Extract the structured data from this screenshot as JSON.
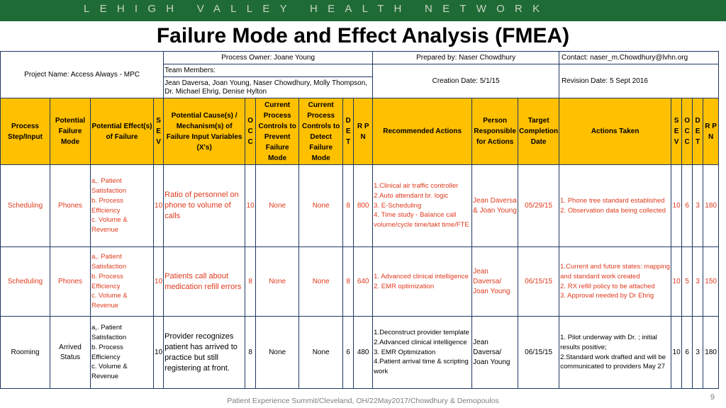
{
  "brand": "LEHIGH VALLEY HEALTH NETWORK",
  "title": "Failure Mode and Effect Analysis (FMEA)",
  "meta": {
    "project_name": "Project Name: Access Always - MPC",
    "process_owner": "Process Owner:  Joane Young",
    "prepared_by": "Prepared by: Naser Chowdhury",
    "contact": "Contact: naser_m.Chowdhury@lvhn.org",
    "team_label": "Team Members:",
    "team_members": "Jean Daversa, Joan Young, Naser Chowdhury, Molly Thompson, Dr. Michael Ehrig, Denise Hylton",
    "creation_date": "Creation Date: 5/1/15",
    "revision_date": "Revision Date:  5 Sept 2016"
  },
  "headers": {
    "process_step": "Process Step/Input",
    "failure_mode": "Potential Failure Mode",
    "failure_effects": "Potential Effect(s) of Failure",
    "sev": "S E V",
    "cause": "Potential Cause(s) / Mechanism(s) of Failure   Input Variables (X's)",
    "occ": "O C C",
    "prevent": "Current Process Controls to Prevent Failure Mode",
    "detect": "Current Process Controls to Detect Failure Mode",
    "det": "D E T",
    "rpn": "R P N",
    "recommended": "Recommended Actions",
    "person": "Person Responsible for Actions",
    "target": "Target Completion Date",
    "taken": "Actions Taken",
    "sev2": "S E V",
    "occ2": "O C C",
    "det2": "D E T",
    "rpn2": "R P N"
  },
  "rows": [
    {
      "step": "Scheduling",
      "mode": "Phones",
      "effects": [
        "a,. Patient Satisfaction",
        "b. Process Efficiency",
        "c. Volume & Revenue"
      ],
      "sev": "10",
      "cause": "Ratio of personnel on phone to volume of calls",
      "occ": "10",
      "prevent": "None",
      "detect": "None",
      "det": "8",
      "rpn": "800",
      "recommended": [
        "1.Clinical air traffic controller",
        "2.Auto attendant br. logic",
        "3. E-Scheduling",
        "4. Time study - Balance call volume/cycle time/takt time/FTE"
      ],
      "person": "Jean Daversa & Joan Young",
      "target": "05/29/15",
      "taken": [
        "1. Phone tree standard established",
        "2. Observation data being collected"
      ],
      "sev2": "10",
      "occ2": "6",
      "det2": "3",
      "rpn2": "180"
    },
    {
      "step": "Scheduling",
      "mode": "Phones",
      "effects": [
        "a,. Patient Satisfaction",
        "b. Process Efficiency",
        "c. Volume & Revenue"
      ],
      "sev": "10",
      "cause": "Patients call about medication refill errors",
      "occ": "8",
      "prevent": "None",
      "detect": "None",
      "det": "8",
      "rpn": "640",
      "recommended": [
        "1.  Advanced clinical intelligence",
        "2. EMR optimization"
      ],
      "person": "Jean Daversa/ Joan Young",
      "target": "06/15/15",
      "taken": [
        "1.Current and future states: mapping and standard work created",
        "2. RX refill policy to be attached",
        "3. Approval needed by Dr Ehrig"
      ],
      "sev2": "10",
      "occ2": "5",
      "det2": "3",
      "rpn2": "150"
    },
    {
      "step": "Rooming",
      "mode": "Arrived Status",
      "effects": [
        "a,. Patient Satisfaction",
        "b. Process Efficiency",
        "c. Volume & Revenue"
      ],
      "sev": "10",
      "cause": "Provider recognizes patient has arrived to practice but still registering at front.",
      "occ": "8",
      "prevent": "None",
      "detect": "None",
      "det": "6",
      "rpn": "480",
      "recommended": [
        "1.Deconstruct provider template",
        "2.Advanced clinical intelligence",
        "3. EMR Optimization",
        "4.Patient arrival time & scripting work"
      ],
      "person": "Jean Daversa/ Joan Young",
      "target": "06/15/15",
      "taken": [
        "1. Pilot underway with Dr. ; initial results positive;",
        "2.Standard work drafted and will be communicated to providers May 27"
      ],
      "sev2": "10",
      "occ2": "6",
      "det2": "3",
      "rpn2": "180"
    }
  ],
  "colors": {
    "brand_bar": "#1f6b35",
    "header_fill": "#ffc000",
    "red_text": "#e03a1e",
    "footer_text": "#7f7f7f"
  },
  "footer": "Patient Experience Summit/Cleveland, OH/22May2017/Chowdhury & Demopoulos",
  "page_number": "9"
}
